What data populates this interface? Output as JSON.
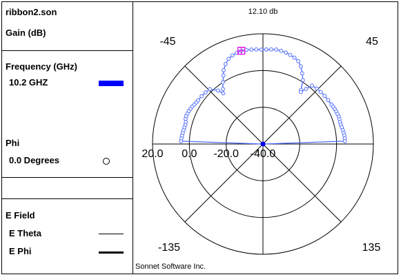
{
  "legend": {
    "file_name": "ribbon2.son",
    "quantity": "Gain (dB)",
    "frequency_header": "Frequency (GHz)",
    "frequency_value": "10.2 GHZ",
    "frequency_color": "#0000ff",
    "phi_header": "Phi",
    "phi_value": "0.0 Degrees",
    "phi_marker": "circle-icon",
    "efield_header": "E Field",
    "etheta_label": "E Theta",
    "ephi_label": "E Phi"
  },
  "colors": {
    "trace": "#4f6bff",
    "max_marker": "#e000e0",
    "center_dot": "#0000ff"
  },
  "chart_data": {
    "type": "polar",
    "max_label": "12.10 db",
    "angle_labels": {
      "top_left": "-45",
      "top_right": "45",
      "bottom_left": "-135",
      "bottom_right": "135"
    },
    "radial_tick_labels": [
      "20.0",
      "0.0",
      "-20.0",
      "-40.0"
    ],
    "rlim": [
      -40,
      20
    ],
    "footer": "Sonnet Software Inc.",
    "series": [
      {
        "frequency": "10.2 GHZ",
        "phi": "0.0 Degrees",
        "theta_deg": [
          -90,
          -88,
          -86,
          -84,
          -82,
          -80,
          -78,
          -76,
          -74,
          -72,
          -70,
          -68,
          -66,
          -64,
          -62,
          -60,
          -58,
          -56,
          -52,
          -48,
          -44,
          -40,
          -38,
          -36,
          -33,
          -30,
          -28,
          -25,
          -22,
          -19,
          -16,
          -13,
          -10,
          -7,
          -4,
          -1,
          2,
          5,
          8,
          11,
          14,
          17,
          20,
          23,
          26,
          29,
          32,
          35,
          36,
          38,
          40,
          44,
          48,
          52,
          56,
          60,
          62,
          64,
          66,
          68,
          70,
          72,
          74,
          76,
          78,
          80,
          82,
          84,
          86,
          88,
          90
        ],
        "gain_db": [
          -40,
          4.5,
          4.4,
          4.2,
          4.0,
          3.8,
          3.6,
          3.4,
          3.6,
          4.2,
          4.4,
          4.3,
          4.1,
          3.8,
          3.5,
          3.0,
          2.7,
          2.5,
          2.3,
          2.0,
          1.5,
          -2,
          -5,
          -3,
          0,
          3,
          5.5,
          8,
          10,
          11,
          11.6,
          12.1,
          12.0,
          11.8,
          11.6,
          11.4,
          11.5,
          11.7,
          11.9,
          11.7,
          11.3,
          10.7,
          10.0,
          9.0,
          7.0,
          4.0,
          1.0,
          -4,
          -5,
          -2,
          1.5,
          2.0,
          2.3,
          2.5,
          2.7,
          3.0,
          3.2,
          3.4,
          3.6,
          3.7,
          3.8,
          3.7,
          3.6,
          3.6,
          3.8,
          4.0,
          4.3,
          4.5,
          4.6,
          4.5,
          -40
        ]
      }
    ]
  }
}
